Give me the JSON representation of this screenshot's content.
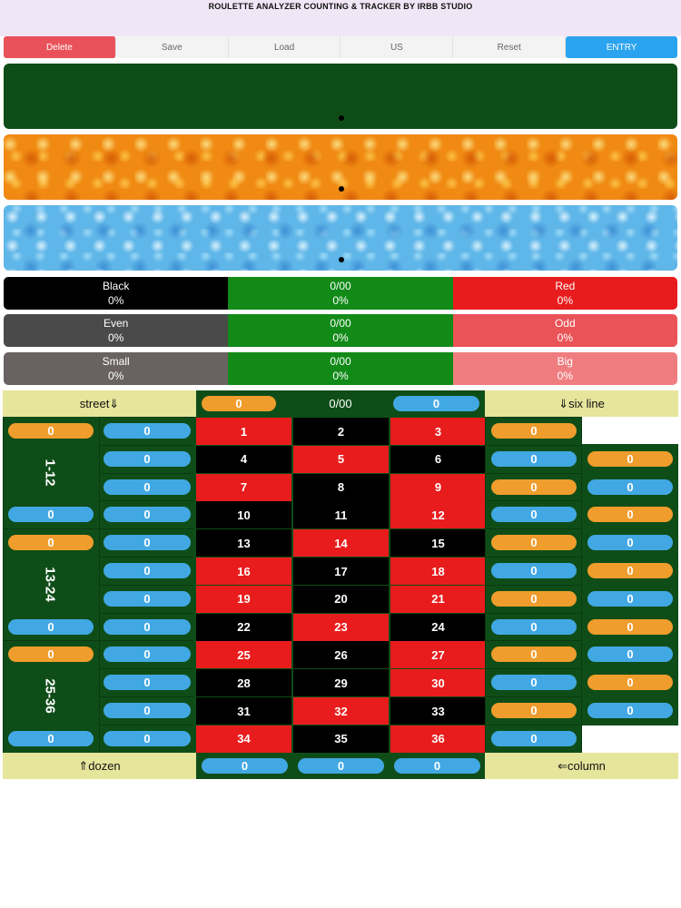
{
  "app": {
    "title": "ROULETTE ANALYZER COUNTING & TRACKER BY IRBB STUDIO"
  },
  "toolbar": {
    "delete": "Delete",
    "save": "Save",
    "load": "Load",
    "wheel": "US",
    "reset": "Reset",
    "entry": "ENTRY",
    "colors": {
      "delete": "#e9525a",
      "entry": "#2ba3ef"
    }
  },
  "stats": [
    {
      "left_label": "Black",
      "left_value": "0%",
      "mid_label": "0/00",
      "mid_value": "0%",
      "right_label": "Red",
      "right_value": "0%"
    },
    {
      "left_label": "Even",
      "left_value": "0%",
      "mid_label": "0/00",
      "mid_value": "0%",
      "right_label": "Odd",
      "right_value": "0%"
    },
    {
      "left_label": "Small",
      "left_value": "0%",
      "mid_label": "0/00",
      "mid_value": "0%",
      "right_label": "Big",
      "right_value": "0%"
    }
  ],
  "board": {
    "street_label": "street⇓",
    "sixline_label": "⇓six line",
    "dozen_label": "⇑dozen",
    "column_label": "⇐column",
    "zero_label": "0/00",
    "zero_counts": [
      "0",
      "0"
    ],
    "dozens": [
      {
        "label": "1-12",
        "top_count": "0",
        "bottom_count": "0"
      },
      {
        "label": "13-24",
        "top_count": "0",
        "bottom_count": "0"
      },
      {
        "label": "25-36",
        "top_count": "0",
        "bottom_count": "0"
      }
    ],
    "street_counts": [
      "0",
      "0",
      "0",
      "0",
      "0",
      "0",
      "0",
      "0",
      "0",
      "0",
      "0",
      "0"
    ],
    "numbers": [
      [
        {
          "n": "1",
          "c": "red"
        },
        {
          "n": "2",
          "c": "black"
        },
        {
          "n": "3",
          "c": "red"
        }
      ],
      [
        {
          "n": "4",
          "c": "black"
        },
        {
          "n": "5",
          "c": "red"
        },
        {
          "n": "6",
          "c": "black"
        }
      ],
      [
        {
          "n": "7",
          "c": "red"
        },
        {
          "n": "8",
          "c": "black"
        },
        {
          "n": "9",
          "c": "red"
        }
      ],
      [
        {
          "n": "10",
          "c": "black"
        },
        {
          "n": "11",
          "c": "black"
        },
        {
          "n": "12",
          "c": "red"
        }
      ],
      [
        {
          "n": "13",
          "c": "black"
        },
        {
          "n": "14",
          "c": "red"
        },
        {
          "n": "15",
          "c": "black"
        }
      ],
      [
        {
          "n": "16",
          "c": "red"
        },
        {
          "n": "17",
          "c": "black"
        },
        {
          "n": "18",
          "c": "red"
        }
      ],
      [
        {
          "n": "19",
          "c": "red"
        },
        {
          "n": "20",
          "c": "black"
        },
        {
          "n": "21",
          "c": "red"
        }
      ],
      [
        {
          "n": "22",
          "c": "black"
        },
        {
          "n": "23",
          "c": "red"
        },
        {
          "n": "24",
          "c": "black"
        }
      ],
      [
        {
          "n": "25",
          "c": "red"
        },
        {
          "n": "26",
          "c": "black"
        },
        {
          "n": "27",
          "c": "red"
        }
      ],
      [
        {
          "n": "28",
          "c": "black"
        },
        {
          "n": "29",
          "c": "black"
        },
        {
          "n": "30",
          "c": "red"
        }
      ],
      [
        {
          "n": "31",
          "c": "black"
        },
        {
          "n": "32",
          "c": "red"
        },
        {
          "n": "33",
          "c": "black"
        }
      ],
      [
        {
          "n": "34",
          "c": "red"
        },
        {
          "n": "35",
          "c": "black"
        },
        {
          "n": "36",
          "c": "red"
        }
      ]
    ],
    "sixline_left": [
      {
        "v": "0",
        "c": "o"
      },
      {
        "v": "0",
        "c": "b"
      },
      {
        "v": "0",
        "c": "o"
      },
      {
        "v": "0",
        "c": "b"
      },
      {
        "v": "0",
        "c": "o"
      },
      {
        "v": "0",
        "c": "b"
      },
      {
        "v": "0",
        "c": "o"
      },
      {
        "v": "0",
        "c": "b"
      },
      {
        "v": "0",
        "c": "o"
      },
      {
        "v": "0",
        "c": "b"
      },
      {
        "v": "0",
        "c": "o"
      },
      {
        "v": "0",
        "c": "b"
      }
    ],
    "sixline_right": [
      {
        "v": "0",
        "c": "o"
      },
      {
        "v": "0",
        "c": "b"
      },
      {
        "v": "0",
        "c": "o"
      },
      {
        "v": "0",
        "c": "b"
      },
      {
        "v": "0",
        "c": "o"
      },
      {
        "v": "0",
        "c": "b"
      },
      {
        "v": "0",
        "c": "o"
      },
      {
        "v": "0",
        "c": "b"
      },
      {
        "v": "0",
        "c": "o"
      },
      {
        "v": "0",
        "c": "b"
      }
    ],
    "column_counts": [
      "0",
      "0",
      "0"
    ]
  },
  "colors": {
    "red": "#e81c1c",
    "black": "#000000",
    "felt": "#0f4d18",
    "orange_pill": "#ef9d2c",
    "blue_pill": "#42a8e3",
    "label_bg": "#e6e59c"
  }
}
